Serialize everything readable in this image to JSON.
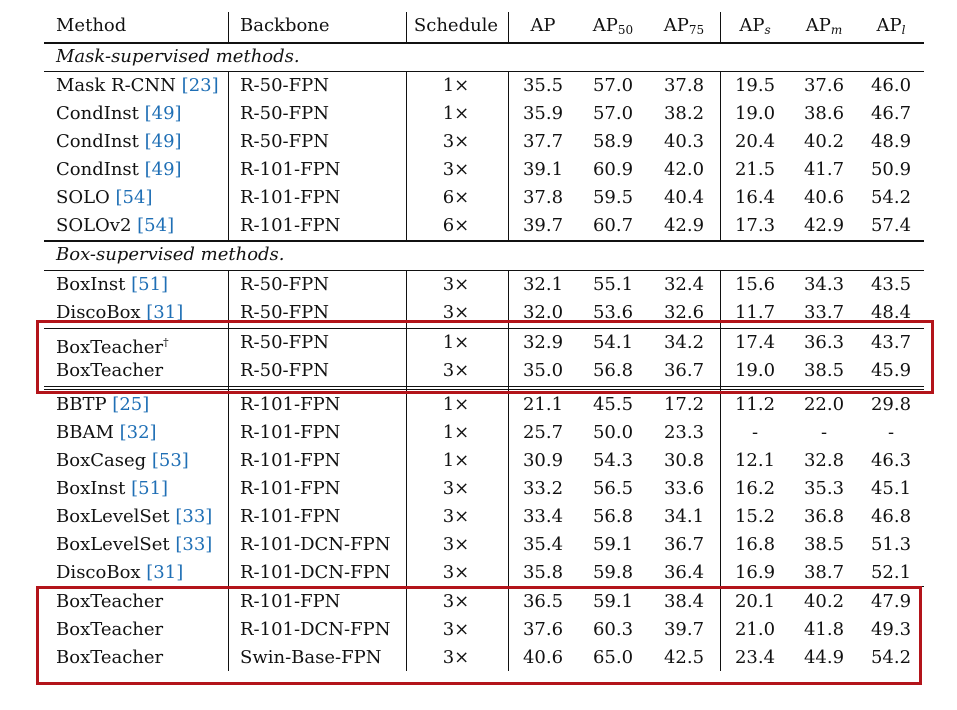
{
  "headers": {
    "method": "Method",
    "backbone": "Backbone",
    "schedule": "Schedule",
    "ap": "AP",
    "ap50_base": "AP",
    "ap50_sub": "50",
    "ap75_base": "AP",
    "ap75_sub": "75",
    "aps_base": "AP",
    "aps_sub": "s",
    "apm_base": "AP",
    "apm_sub": "m",
    "apl_base": "AP",
    "apl_sub": "l"
  },
  "sections": {
    "mask": "Mask-supervised methods.",
    "box": "Box-supervised methods."
  },
  "rows": [
    {
      "name": "Mask R-CNN ",
      "ref": "[23]",
      "sup": "",
      "backbone": "R-50-FPN",
      "schedule": "1×",
      "ap": "35.5",
      "ap50": "57.0",
      "ap75": "37.8",
      "aps": "19.5",
      "apm": "37.6",
      "apl": "46.0"
    },
    {
      "name": "CondInst ",
      "ref": "[49]",
      "sup": "",
      "backbone": "R-50-FPN",
      "schedule": "1×",
      "ap": "35.9",
      "ap50": "57.0",
      "ap75": "38.2",
      "aps": "19.0",
      "apm": "38.6",
      "apl": "46.7"
    },
    {
      "name": "CondInst ",
      "ref": "[49]",
      "sup": "",
      "backbone": "R-50-FPN",
      "schedule": "3×",
      "ap": "37.7",
      "ap50": "58.9",
      "ap75": "40.3",
      "aps": "20.4",
      "apm": "40.2",
      "apl": "48.9"
    },
    {
      "name": "CondInst ",
      "ref": "[49]",
      "sup": "",
      "backbone": "R-101-FPN",
      "schedule": "3×",
      "ap": "39.1",
      "ap50": "60.9",
      "ap75": "42.0",
      "aps": "21.5",
      "apm": "41.7",
      "apl": "50.9"
    },
    {
      "name": "SOLO ",
      "ref": "[54]",
      "sup": "",
      "backbone": "R-101-FPN",
      "schedule": "6×",
      "ap": "37.8",
      "ap50": "59.5",
      "ap75": "40.4",
      "aps": "16.4",
      "apm": "40.6",
      "apl": "54.2"
    },
    {
      "name": "SOLOv2 ",
      "ref": "[54]",
      "sup": "",
      "backbone": "R-101-FPN",
      "schedule": "6×",
      "ap": "39.7",
      "ap50": "60.7",
      "ap75": "42.9",
      "aps": "17.3",
      "apm": "42.9",
      "apl": "57.4"
    },
    {
      "name": "BoxInst ",
      "ref": "[51]",
      "sup": "",
      "backbone": "R-50-FPN",
      "schedule": "3×",
      "ap": "32.1",
      "ap50": "55.1",
      "ap75": "32.4",
      "aps": "15.6",
      "apm": "34.3",
      "apl": "43.5"
    },
    {
      "name": "DiscoBox ",
      "ref": "[31]",
      "sup": "",
      "backbone": "R-50-FPN",
      "schedule": "3×",
      "ap": "32.0",
      "ap50": "53.6",
      "ap75": "32.6",
      "aps": "11.7",
      "apm": "33.7",
      "apl": "48.4"
    },
    {
      "name": "BoxTeacher",
      "ref": "",
      "sup": "†",
      "backbone": "R-50-FPN",
      "schedule": "1×",
      "ap": "32.9",
      "ap50": "54.1",
      "ap75": "34.2",
      "aps": "17.4",
      "apm": "36.3",
      "apl": "43.7"
    },
    {
      "name": "BoxTeacher",
      "ref": "",
      "sup": "",
      "backbone": "R-50-FPN",
      "schedule": "3×",
      "ap": "35.0",
      "ap50": "56.8",
      "ap75": "36.7",
      "aps": "19.0",
      "apm": "38.5",
      "apl": "45.9"
    },
    {
      "name": "BBTP ",
      "ref": "[25]",
      "sup": "",
      "backbone": "R-101-FPN",
      "schedule": "1×",
      "ap": "21.1",
      "ap50": "45.5",
      "ap75": "17.2",
      "aps": "11.2",
      "apm": "22.0",
      "apl": "29.8"
    },
    {
      "name": "BBAM ",
      "ref": "[32]",
      "sup": "",
      "backbone": "R-101-FPN",
      "schedule": "1×",
      "ap": "25.7",
      "ap50": "50.0",
      "ap75": "23.3",
      "aps": "-",
      "apm": "-",
      "apl": "-"
    },
    {
      "name": "BoxCaseg ",
      "ref": "[53]",
      "sup": "",
      "backbone": "R-101-FPN",
      "schedule": "1×",
      "ap": "30.9",
      "ap50": "54.3",
      "ap75": "30.8",
      "aps": "12.1",
      "apm": "32.8",
      "apl": "46.3"
    },
    {
      "name": "BoxInst ",
      "ref": "[51]",
      "sup": "",
      "backbone": "R-101-FPN",
      "schedule": "3×",
      "ap": "33.2",
      "ap50": "56.5",
      "ap75": "33.6",
      "aps": "16.2",
      "apm": "35.3",
      "apl": "45.1"
    },
    {
      "name": "BoxLevelSet ",
      "ref": "[33]",
      "sup": "",
      "backbone": "R-101-FPN",
      "schedule": "3×",
      "ap": "33.4",
      "ap50": "56.8",
      "ap75": "34.1",
      "aps": "15.2",
      "apm": "36.8",
      "apl": "46.8"
    },
    {
      "name": "BoxLevelSet ",
      "ref": "[33]",
      "sup": "",
      "backbone": "R-101-DCN-FPN",
      "schedule": "3×",
      "ap": "35.4",
      "ap50": "59.1",
      "ap75": "36.7",
      "aps": "16.8",
      "apm": "38.5",
      "apl": "51.3"
    },
    {
      "name": "DiscoBox ",
      "ref": "[31]",
      "sup": "",
      "backbone": "R-101-DCN-FPN",
      "schedule": "3×",
      "ap": "35.8",
      "ap50": "59.8",
      "ap75": "36.4",
      "aps": "16.9",
      "apm": "38.7",
      "apl": "52.1"
    },
    {
      "name": "BoxTeacher",
      "ref": "",
      "sup": "",
      "backbone": "R-101-FPN",
      "schedule": "3×",
      "ap": "36.5",
      "ap50": "59.1",
      "ap75": "38.4",
      "aps": "20.1",
      "apm": "40.2",
      "apl": "47.9"
    },
    {
      "name": "BoxTeacher",
      "ref": "",
      "sup": "",
      "backbone": "R-101-DCN-FPN",
      "schedule": "3×",
      "ap": "37.6",
      "ap50": "60.3",
      "ap75": "39.7",
      "aps": "21.0",
      "apm": "41.8",
      "apl": "49.3"
    },
    {
      "name": "BoxTeacher",
      "ref": "",
      "sup": "",
      "backbone": "Swin-Base-FPN",
      "schedule": "3×",
      "ap": "40.6",
      "ap50": "65.0",
      "ap75": "42.5",
      "aps": "23.4",
      "apm": "44.9",
      "apl": "54.2"
    }
  ]
}
